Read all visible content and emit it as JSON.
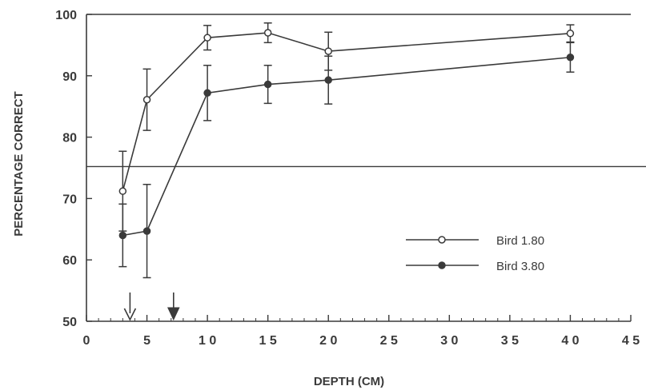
{
  "chart_data": {
    "type": "line",
    "title": "",
    "xlabel": "DEPTH (CM)",
    "ylabel": "PERCENTAGE CORRECT",
    "xlim": [
      0,
      45
    ],
    "ylim": [
      50,
      100
    ],
    "x_ticks": [
      0,
      5,
      10,
      15,
      20,
      25,
      30,
      35,
      40,
      45
    ],
    "x_tick_labels": [
      "0",
      "5",
      "1 0",
      "1 5",
      "2 0",
      "2 5",
      "3 0",
      "3 5",
      "4 0",
      "4 5"
    ],
    "y_ticks": [
      50,
      60,
      70,
      80,
      90,
      100
    ],
    "y_tick_labels": [
      "50",
      "60",
      "70",
      "80",
      "90",
      "100"
    ],
    "reference_line": {
      "y": 75.2
    },
    "legend_position": "bottom-right",
    "series": [
      {
        "name": "Bird 1.80",
        "marker": "open-circle",
        "x": [
          3,
          5,
          10,
          15,
          20,
          40
        ],
        "y": [
          71.2,
          86.1,
          96.2,
          97.0,
          94.0,
          96.9
        ],
        "error": [
          6.5,
          5.0,
          2.0,
          1.6,
          3.1,
          1.4
        ]
      },
      {
        "name": "Bird 3.80",
        "marker": "filled-circle",
        "x": [
          3,
          5,
          10,
          15,
          20,
          40
        ],
        "y": [
          64.0,
          64.7,
          87.2,
          88.6,
          89.3,
          93.0
        ],
        "error": [
          5.1,
          7.6,
          4.5,
          3.1,
          3.9,
          2.4
        ]
      }
    ],
    "arrows": [
      {
        "x": 3.6,
        "style": "open"
      },
      {
        "x": 7.2,
        "style": "filled"
      }
    ],
    "colors": {
      "ink": "#3a3a3a",
      "background": "#ffffff"
    }
  }
}
